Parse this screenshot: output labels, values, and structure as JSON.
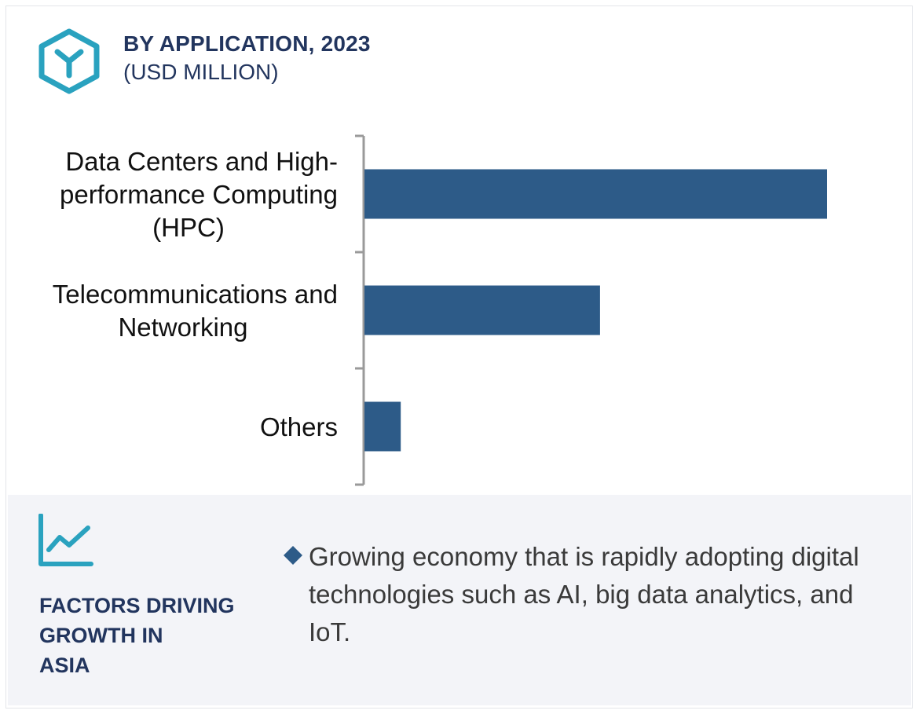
{
  "header": {
    "title": "BY APPLICATION, 2023",
    "subtitle": "(USD MILLION)",
    "logo_icon": "hexagon-y-logo-icon",
    "accent_color": "#2aa2bf"
  },
  "chart_data": {
    "type": "bar",
    "orientation": "horizontal",
    "title": "BY APPLICATION, 2023",
    "unit": "USD MILLION",
    "categories": [
      [
        "Data Centers and High-",
        "performance Computing",
        "(HPC)"
      ],
      [
        "Telecommunications and",
        "Networking"
      ],
      [
        "Others"
      ]
    ],
    "values": [
      100,
      51,
      8
    ],
    "xlim": [
      0,
      100
    ],
    "bar_color": "#2d5b88",
    "axis_color": "#9a9a9a",
    "grid": false,
    "legend": "none",
    "note": "No numeric axis or data labels shown; values are relative estimates from bar lengths."
  },
  "factors": {
    "icon": "trend-line-chart-icon",
    "title_lines": [
      "FACTORS DRIVING",
      "GROWTH IN",
      "ASIA"
    ],
    "bullet_icon": "diamond-bullet-icon",
    "bullets": [
      "Growing economy that is rapidly adopting digital technologies such as AI, big data analytics, and IoT."
    ]
  }
}
